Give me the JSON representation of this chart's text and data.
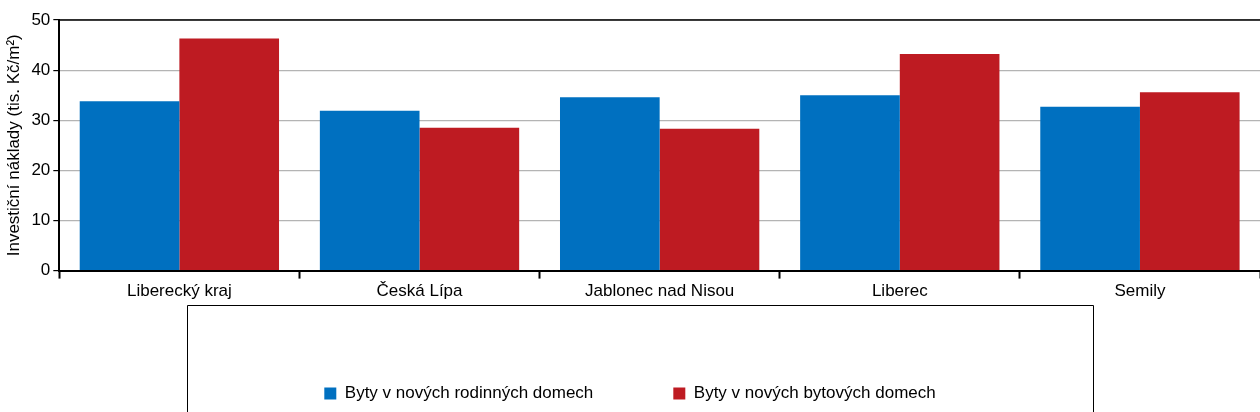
{
  "chart_data": {
    "type": "bar",
    "ylabel": "Investiční náklady (tis. Kč/m²)",
    "categories": [
      "Liberecký kraj",
      "Česká Lípa",
      "Jablonec nad Nisou",
      "Liberec",
      "Semily"
    ],
    "series": [
      {
        "name": "Byty v nových rodinných domech",
        "color": "#0070c0",
        "values": [
          33.8,
          31.9,
          34.6,
          35.0,
          32.7
        ]
      },
      {
        "name": "Byty v nových bytových domech",
        "color": "#be1b22",
        "values": [
          46.3,
          28.5,
          28.3,
          43.2,
          35.6
        ]
      }
    ],
    "ylim": [
      0,
      50
    ],
    "yticks": [
      0,
      10,
      20,
      30,
      40,
      50
    ],
    "grid": "y",
    "legend": "bottom"
  }
}
